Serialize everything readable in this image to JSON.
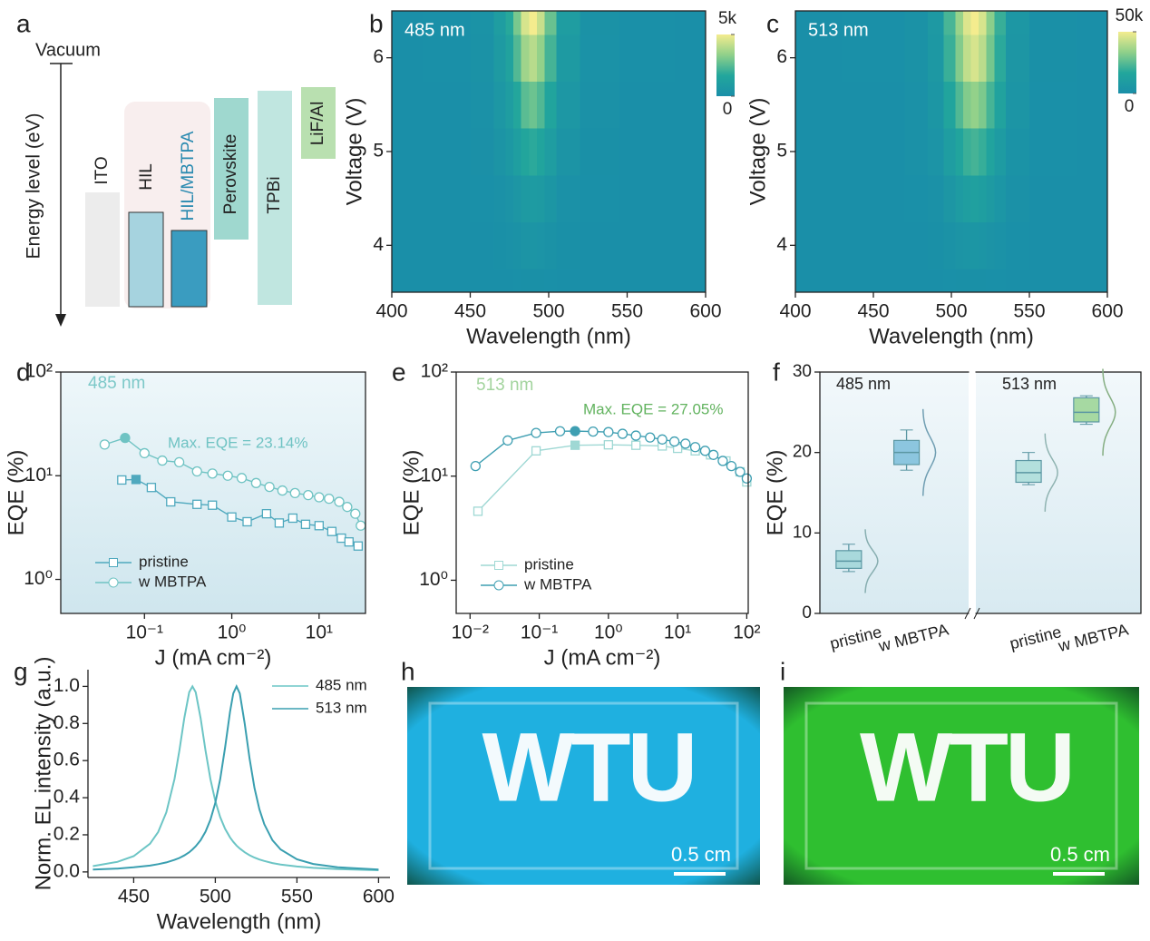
{
  "diagram": {
    "panel": "a",
    "top_label": "Vacuum",
    "axis_label": "Energy level (eV)",
    "layers": [
      "ITO",
      "HIL",
      "HIL/MBTPA",
      "Perovskite",
      "TPBi",
      "LiF/Al"
    ]
  },
  "chart_data": [
    {
      "type": "heatmap",
      "panel": "b",
      "label": "485 nm",
      "xlabel": "Wavelength (nm)",
      "ylabel": "Voltage (V)",
      "x": [
        400,
        440,
        460,
        470,
        475,
        480,
        485,
        490,
        495,
        500,
        510,
        530,
        560,
        600
      ],
      "y": [
        3.5,
        4,
        4.5,
        5,
        5.5,
        6,
        6.5
      ],
      "z": [
        [
          0,
          1,
          6,
          20,
          35,
          60,
          90,
          100,
          85,
          55,
          20,
          5,
          1,
          0
        ],
        [
          0,
          4,
          24,
          80,
          140,
          240,
          360,
          400,
          340,
          220,
          80,
          20,
          4,
          0
        ],
        [
          0,
          9,
          54,
          180,
          315,
          540,
          810,
          900,
          765,
          495,
          180,
          45,
          9,
          0
        ],
        [
          0,
          18,
          108,
          360,
          630,
          1080,
          1620,
          1800,
          1530,
          990,
          360,
          90,
          18,
          0
        ],
        [
          0,
          28,
          168,
          560,
          980,
          1680,
          2520,
          2800,
          2380,
          1540,
          560,
          140,
          28,
          0
        ],
        [
          0,
          40,
          240,
          800,
          1400,
          2400,
          3600,
          4000,
          3400,
          2200,
          800,
          200,
          40,
          0
        ],
        [
          0,
          50,
          300,
          1000,
          1750,
          3000,
          4500,
          5000,
          4250,
          2750,
          1000,
          250,
          50,
          0
        ]
      ],
      "xlim": [
        400,
        600
      ],
      "ylim": [
        3.5,
        6.5
      ],
      "xticks": [
        400,
        450,
        500,
        550,
        600
      ],
      "yticks": [
        4,
        5,
        6
      ],
      "zlim": [
        0,
        5000
      ],
      "zticks": [
        0,
        {
          "value": 5000,
          "label": "5k"
        }
      ],
      "colors": [
        "#1a8fa8",
        "#22a69c",
        "#8fd08a",
        "#f4ec8e"
      ]
    },
    {
      "type": "heatmap",
      "panel": "c",
      "label": "513 nm",
      "xlabel": "Wavelength (nm)",
      "ylabel": "Voltage (V)",
      "x": [
        400,
        460,
        480,
        490,
        500,
        505,
        510,
        515,
        520,
        525,
        530,
        540,
        560,
        600
      ],
      "y": [
        3.5,
        4,
        4.5,
        5,
        5.5,
        6,
        6.5
      ],
      "z": [
        [
          0,
          10,
          50,
          150,
          450,
          700,
          920,
          1000,
          900,
          650,
          400,
          120,
          20,
          0
        ],
        [
          0,
          50,
          250,
          750,
          2250,
          3500,
          4600,
          5000,
          4500,
          3250,
          2000,
          600,
          100,
          0
        ],
        [
          0,
          120,
          600,
          1800,
          5400,
          8400,
          11040,
          12000,
          10800,
          7800,
          4800,
          1440,
          240,
          0
        ],
        [
          0,
          220,
          1100,
          3300,
          9900,
          15400,
          20240,
          22000,
          19800,
          14300,
          8800,
          2640,
          440,
          0
        ],
        [
          0,
          340,
          1700,
          5100,
          15300,
          23800,
          31280,
          34000,
          30600,
          22100,
          13600,
          4080,
          680,
          0
        ],
        [
          0,
          450,
          2250,
          6750,
          20250,
          31500,
          41400,
          45000,
          40500,
          29250,
          18000,
          5400,
          900,
          0
        ],
        [
          0,
          500,
          2500,
          7500,
          22500,
          35000,
          46000,
          50000,
          45000,
          32500,
          20000,
          6000,
          1000,
          0
        ]
      ],
      "xlim": [
        400,
        600
      ],
      "ylim": [
        3.5,
        6.5
      ],
      "xticks": [
        400,
        450,
        500,
        550,
        600
      ],
      "yticks": [
        4,
        5,
        6
      ],
      "zlim": [
        0,
        50000
      ],
      "zticks": [
        0,
        {
          "value": 50000,
          "label": "50k"
        }
      ],
      "colors": [
        "#1a8fa8",
        "#22a69c",
        "#8fd08a",
        "#f4ec8e"
      ]
    },
    {
      "type": "line",
      "panel": "d",
      "label": "485 nm",
      "annotation": "Max. EQE = 23.14%",
      "xlabel": "J (mA cm⁻²)",
      "ylabel": "EQE (%)",
      "xlog": true,
      "ylog": true,
      "xlim": [
        0.011,
        34
      ],
      "ylim": [
        0.47,
        100
      ],
      "xticks": [
        {
          "value": 0.1,
          "label": "10⁻¹"
        },
        {
          "value": 1,
          "label": "10⁰"
        },
        {
          "value": 10,
          "label": "10¹"
        }
      ],
      "yticks": [
        {
          "value": 1,
          "label": "10⁰"
        },
        {
          "value": 10,
          "label": "10¹"
        },
        {
          "value": 100,
          "label": "10²"
        }
      ],
      "legend": "bottom-left",
      "series": [
        {
          "name": "pristine",
          "color": "#4fa9be",
          "marker": "square",
          "highlight_index": 1,
          "x": [
            0.055,
            0.08,
            0.12,
            0.2,
            0.4,
            0.6,
            1,
            1.5,
            2.5,
            3.5,
            5,
            7,
            10,
            14,
            18,
            22,
            28
          ],
          "values": [
            9.1,
            9.2,
            7.7,
            5.6,
            5.3,
            5.2,
            4.0,
            3.6,
            4.3,
            3.5,
            3.9,
            3.4,
            3.3,
            2.9,
            2.5,
            2.3,
            2.1
          ]
        },
        {
          "name": "w MBTPA",
          "color": "#6fc3c3",
          "marker": "circle",
          "highlight_index": 1,
          "x": [
            0.035,
            0.06,
            0.1,
            0.16,
            0.25,
            0.4,
            0.6,
            0.9,
            1.3,
            1.9,
            2.7,
            3.8,
            5.3,
            7.5,
            10,
            13,
            17,
            21,
            26,
            30
          ],
          "values": [
            20,
            23.14,
            16.5,
            14,
            13.5,
            11,
            10.5,
            10,
            9.5,
            8.5,
            7.8,
            7.2,
            6.8,
            6.5,
            6.2,
            6,
            5.6,
            5,
            4.3,
            3.3
          ]
        }
      ]
    },
    {
      "type": "line",
      "panel": "e",
      "label": "513 nm",
      "annotation": "Max. EQE = 27.05%",
      "xlabel": "J (mA cm⁻²)",
      "ylabel": "EQE (%)",
      "xlog": true,
      "ylog": true,
      "xlim": [
        0.0063,
        105
      ],
      "ylim": [
        0.48,
        100
      ],
      "xticks": [
        {
          "value": 0.01,
          "label": "10⁻²"
        },
        {
          "value": 0.1,
          "label": "10⁻¹"
        },
        {
          "value": 1,
          "label": "10⁰"
        },
        {
          "value": 10,
          "label": "10¹"
        },
        {
          "value": 100,
          "label": "10²"
        }
      ],
      "yticks": [
        {
          "value": 1,
          "label": "10⁰"
        },
        {
          "value": 10,
          "label": "10¹"
        },
        {
          "value": 100,
          "label": "10²"
        }
      ],
      "legend": "bottom-left",
      "series": [
        {
          "name": "pristine",
          "color": "#9fd8d4",
          "marker": "square",
          "highlight_index": 2,
          "x": [
            0.013,
            0.09,
            0.33,
            1,
            2.5,
            6,
            10,
            18,
            30,
            50,
            80,
            100
          ],
          "values": [
            4.6,
            17.5,
            19.8,
            20,
            19.8,
            19.5,
            18.5,
            17.5,
            16,
            14,
            11,
            8.8
          ]
        },
        {
          "name": "w MBTPA",
          "color": "#3f9fb2",
          "marker": "circle",
          "highlight_index": 4,
          "x": [
            0.012,
            0.035,
            0.09,
            0.2,
            0.33,
            0.6,
            1,
            1.6,
            2.5,
            4,
            6,
            9,
            13,
            18,
            25,
            33,
            45,
            60,
            80,
            100
          ],
          "values": [
            12.5,
            22,
            26,
            27,
            27.05,
            26.8,
            26.5,
            25.5,
            24.5,
            23.5,
            22.5,
            21.5,
            20.5,
            19,
            17.5,
            16,
            14,
            12.5,
            11,
            9.5
          ]
        }
      ]
    },
    {
      "type": "box",
      "panel": "f",
      "ylabel": "EQE (%)",
      "ylim": [
        0,
        30
      ],
      "yticks": [
        0,
        10,
        20,
        30
      ],
      "groups": [
        "485 nm",
        "513 nm"
      ],
      "categories": [
        "pristine",
        "w MBTPA",
        "pristine",
        "w MBTPA"
      ],
      "boxes": [
        {
          "color": "#a9d9dc",
          "min": 5.2,
          "q1": 5.6,
          "median": 6.5,
          "q3": 7.8,
          "max": 8.6
        },
        {
          "color": "#8cc6df",
          "min": 17.8,
          "q1": 18.5,
          "median": 20,
          "q3": 21.5,
          "max": 22.8
        },
        {
          "color": "#b3e0dd",
          "min": 16,
          "q1": 16.3,
          "median": 17.5,
          "q3": 19,
          "max": 20
        },
        {
          "color": "#a6d9a2",
          "min": 23.5,
          "q1": 23.8,
          "median": 25,
          "q3": 26.8,
          "max": 27.05
        }
      ]
    },
    {
      "type": "line",
      "panel": "g",
      "xlabel": "Wavelength (nm)",
      "ylabel": "Norm. EL intensity (a.u.)",
      "xlim": [
        422,
        607
      ],
      "ylim": [
        -0.03,
        1.09
      ],
      "xticks": [
        450,
        500,
        550,
        600
      ],
      "yticks": [
        {
          "value": 0,
          "label": "0.0"
        },
        0.2,
        0.4,
        0.6,
        0.8,
        {
          "value": 1,
          "label": "1.0"
        }
      ],
      "legend": "top-right",
      "x": [
        425,
        440,
        450,
        460,
        465,
        470,
        475,
        478,
        481,
        484,
        486,
        488,
        491,
        494,
        497,
        500,
        503,
        506,
        509,
        511,
        513,
        515,
        518,
        521,
        524,
        527,
        530,
        535,
        540,
        550,
        560,
        575,
        600
      ],
      "series": [
        {
          "name": "485 nm",
          "color": "#6cc5c5",
          "values": [
            0.031,
            0.054,
            0.085,
            0.152,
            0.215,
            0.321,
            0.5,
            0.654,
            0.829,
            0.968,
            1,
            0.968,
            0.829,
            0.654,
            0.5,
            0.382,
            0.295,
            0.232,
            0.186,
            0.162,
            0.142,
            0.126,
            0.106,
            0.09,
            0.077,
            0.067,
            0.059,
            0.048,
            0.04,
            0.029,
            0.022,
            0.015,
            0.009
          ]
        },
        {
          "name": "513 nm",
          "color": "#3a9fb0",
          "values": [
            0.013,
            0.018,
            0.025,
            0.034,
            0.042,
            0.051,
            0.065,
            0.075,
            0.089,
            0.106,
            0.121,
            0.138,
            0.171,
            0.217,
            0.281,
            0.372,
            0.5,
            0.671,
            0.862,
            0.962,
            1,
            0.962,
            0.8,
            0.61,
            0.452,
            0.338,
            0.257,
            0.171,
            0.121,
            0.068,
            0.043,
            0.025,
            0.013
          ]
        }
      ]
    }
  ],
  "photos": [
    {
      "panel": "h",
      "text": "WTU",
      "scale_label": "0.5 cm",
      "color": "#1fb0e0"
    },
    {
      "panel": "i",
      "text": "WTU",
      "scale_label": "0.5 cm",
      "color": "#2fbf30"
    }
  ]
}
